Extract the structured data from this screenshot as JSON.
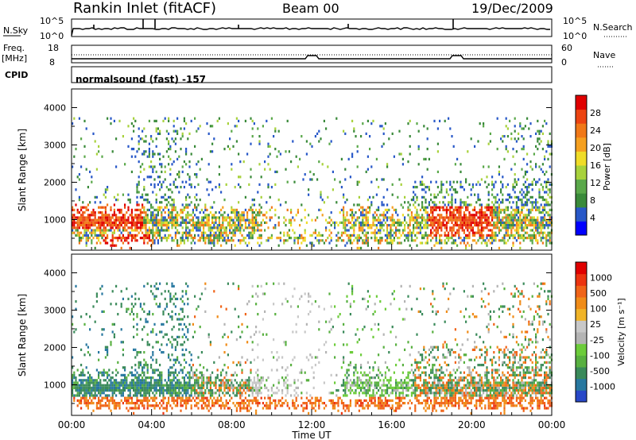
{
  "header": {
    "title": "Rankin Inlet (fitACF)",
    "beam": "Beam 00",
    "date": "19/Dec/2009"
  },
  "panels": {
    "nsky_label": "N.Sky",
    "nsearch_label": "N.Search",
    "nsky_ticks": [
      "10^5",
      "10^0"
    ],
    "nsearch_ticks": [
      "10^5",
      "10^0"
    ],
    "freq_label_1": "Freq.",
    "freq_label_2": "[MHz]",
    "freq_ticks": [
      "18",
      "8"
    ],
    "nave_label": "Nave",
    "nave_ticks": [
      "60",
      "0"
    ],
    "cpid_label": "CPID",
    "cpid_text": "normalsound (fast) -157"
  },
  "power_colorbar": {
    "label": "Power [dB]",
    "ticks": [
      "28",
      "24",
      "20",
      "16",
      "12",
      "8",
      "4"
    ],
    "colors": [
      "#0000ff",
      "#2858c8",
      "#3a8a3a",
      "#5aa84a",
      "#a8d23c",
      "#f0dc28",
      "#f5a020",
      "#f07818",
      "#ec4412",
      "#e00000"
    ]
  },
  "velocity_colorbar": {
    "label": "Velocity [m s⁻¹]",
    "ticks": [
      "1000",
      "500",
      "100",
      "25",
      "-25",
      "-100",
      "-500",
      "-1000"
    ],
    "colors": [
      "#2848c8",
      "#2878a0",
      "#3a8a5a",
      "#58b040",
      "#6ccc3a",
      "#b4b4b4",
      "#c8c8c8",
      "#f0b428",
      "#f08c18",
      "#f06418",
      "#ec3410",
      "#e00000"
    ]
  },
  "chart_data": [
    {
      "type": "heatmap",
      "name": "Power",
      "ylabel": "Slant Range [km]",
      "ylim": [
        180,
        4500
      ],
      "y_ticks": [
        "1000",
        "2000",
        "3000",
        "4000"
      ],
      "x_ticks": [
        "00:00",
        "04:00",
        "08:00",
        "12:00",
        "16:00",
        "20:00",
        "00:00"
      ],
      "xlim": [
        "00:00",
        "24:00"
      ]
    },
    {
      "type": "heatmap",
      "name": "Velocity",
      "ylabel": "Slant Range [km]",
      "ylim": [
        180,
        4500
      ],
      "y_ticks": [
        "1000",
        "2000",
        "3000",
        "4000"
      ],
      "x_ticks": [
        "00:00",
        "04:00",
        "08:00",
        "12:00",
        "16:00",
        "20:00",
        "00:00"
      ],
      "xlim": [
        "00:00",
        "24:00"
      ],
      "xlabel": "Time UT"
    }
  ]
}
